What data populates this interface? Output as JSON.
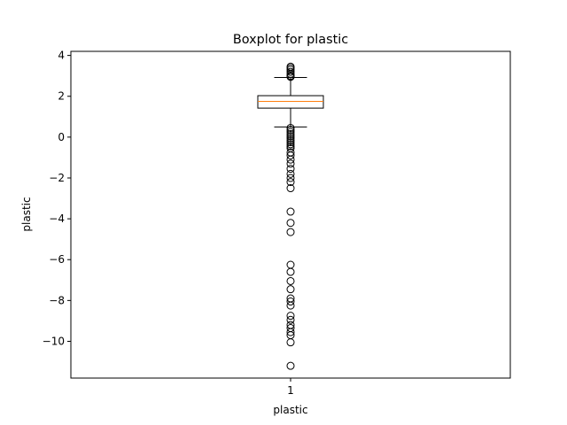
{
  "chart_data": {
    "type": "boxplot",
    "title": "Boxplot for plastic",
    "xlabel": "plastic",
    "ylabel": "plastic",
    "categories": [
      "1"
    ],
    "ylim": [
      -11.8,
      4.2
    ],
    "yticks": [
      4,
      2,
      0,
      -2,
      -4,
      -6,
      -8,
      -10
    ],
    "ytick_labels": [
      "4",
      "2",
      "0",
      "−2",
      "−4",
      "−6",
      "−8",
      "−10"
    ],
    "grid": false,
    "box": {
      "whisker_low": 0.5,
      "q1": 1.42,
      "median": 1.75,
      "q3": 2.03,
      "whisker_high": 2.92
    },
    "outliers": [
      3.45,
      3.38,
      3.3,
      3.2,
      3.1,
      3.0,
      2.98,
      2.95,
      0.45,
      0.35,
      0.25,
      0.15,
      0.05,
      -0.05,
      -0.15,
      -0.25,
      -0.35,
      -0.45,
      -0.55,
      -0.75,
      -0.9,
      -1.1,
      -1.3,
      -1.55,
      -1.8,
      -2.0,
      -2.2,
      -2.5,
      -3.65,
      -4.2,
      -4.65,
      -6.25,
      -6.6,
      -7.05,
      -7.45,
      -7.9,
      -8.05,
      -8.25,
      -8.75,
      -8.95,
      -9.2,
      -9.35,
      -9.55,
      -9.7,
      -10.05,
      -11.2
    ],
    "colors": {
      "box": "#000000",
      "median": "#ff7f0e",
      "outlier_edge": "#000000"
    }
  }
}
